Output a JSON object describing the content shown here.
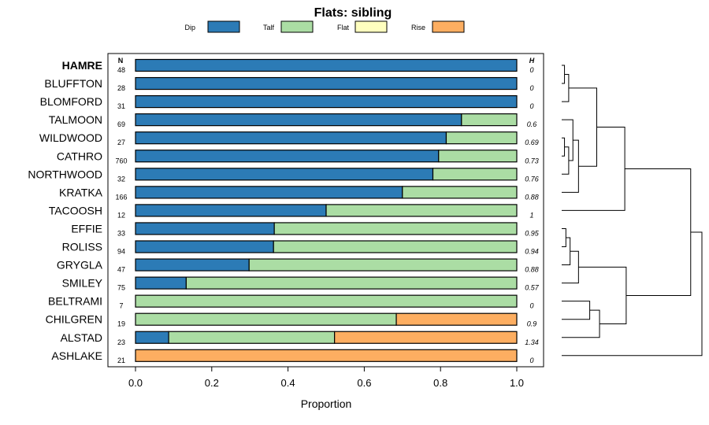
{
  "chart_data": {
    "type": "bar",
    "stacked": "horizontal-proportion",
    "title": "Flats: sibling",
    "xlabel": "Proportion",
    "ylabel": "",
    "xlim": [
      0,
      1
    ],
    "x_ticks": [
      "0.0",
      "0.2",
      "0.4",
      "0.6",
      "0.8",
      "1.0"
    ],
    "n_header": "N",
    "h_header": "H",
    "highlighted_category": "HAMRE",
    "legend_position": "top",
    "legend": [
      {
        "name": "Dip",
        "color": "#2c7bb6"
      },
      {
        "name": "Talf",
        "color": "#abdda4"
      },
      {
        "name": "Flat",
        "color": "#ffffbf"
      },
      {
        "name": "Rise",
        "color": "#fdae61"
      }
    ],
    "categories": [
      "HAMRE",
      "BLUFFTON",
      "BLOMFORD",
      "TALMOON",
      "WILDWOOD",
      "CATHRO",
      "NORTHWOOD",
      "KRATKA",
      "TACOOSH",
      "EFFIE",
      "ROLISS",
      "GRYGLA",
      "SMILEY",
      "BELTRAMI",
      "CHILGREN",
      "ALSTAD",
      "ASHLAKE"
    ],
    "n": [
      "48",
      "28",
      "31",
      "69",
      "27",
      "760",
      "32",
      "166",
      "12",
      "33",
      "94",
      "47",
      "75",
      "7",
      "19",
      "23",
      "21"
    ],
    "h": [
      "0",
      "0",
      "0",
      "0.6",
      "0.69",
      "0.73",
      "0.76",
      "0.88",
      "1",
      "0.95",
      "0.94",
      "0.88",
      "0.57",
      "0",
      "0.9",
      "1.34",
      "0"
    ],
    "series": [
      {
        "name": "Dip",
        "values": [
          1.0,
          1.0,
          1.0,
          0.855,
          0.815,
          0.795,
          0.78,
          0.7,
          0.5,
          0.364,
          0.362,
          0.298,
          0.133,
          0.0,
          0.0,
          0.087,
          0.0
        ]
      },
      {
        "name": "Talf",
        "values": [
          0.0,
          0.0,
          0.0,
          0.145,
          0.185,
          0.205,
          0.22,
          0.3,
          0.5,
          0.636,
          0.638,
          0.702,
          0.867,
          1.0,
          0.684,
          0.435,
          0.0
        ]
      },
      {
        "name": "Flat",
        "values": [
          0,
          0,
          0,
          0,
          0,
          0,
          0,
          0,
          0,
          0,
          0,
          0,
          0,
          0,
          0,
          0,
          0
        ]
      },
      {
        "name": "Rise",
        "values": [
          0.0,
          0.0,
          0.0,
          0.0,
          0.0,
          0.0,
          0.0,
          0.0,
          0.0,
          0.0,
          0.0,
          0.0,
          0.0,
          0.0,
          0.316,
          0.478,
          1.0
        ]
      }
    ],
    "dendrogram": {
      "merges": [
        [
          0,
          1,
          0.02
        ],
        [
          -1,
          2,
          0.05
        ],
        [
          4,
          5,
          0.02
        ],
        [
          -3,
          6,
          0.05
        ],
        [
          3,
          -4,
          0.08
        ],
        [
          -5,
          7,
          0.12
        ],
        [
          -2,
          -6,
          0.25
        ],
        [
          -7,
          8,
          0.45
        ],
        [
          9,
          10,
          0.03
        ],
        [
          -9,
          11,
          0.06
        ],
        [
          -10,
          12,
          0.12
        ],
        [
          13,
          14,
          0.2
        ],
        [
          -12,
          15,
          0.27
        ],
        [
          -11,
          -13,
          0.46
        ],
        [
          -8,
          -14,
          0.92
        ],
        [
          -15,
          16,
          1.0
        ]
      ]
    }
  }
}
